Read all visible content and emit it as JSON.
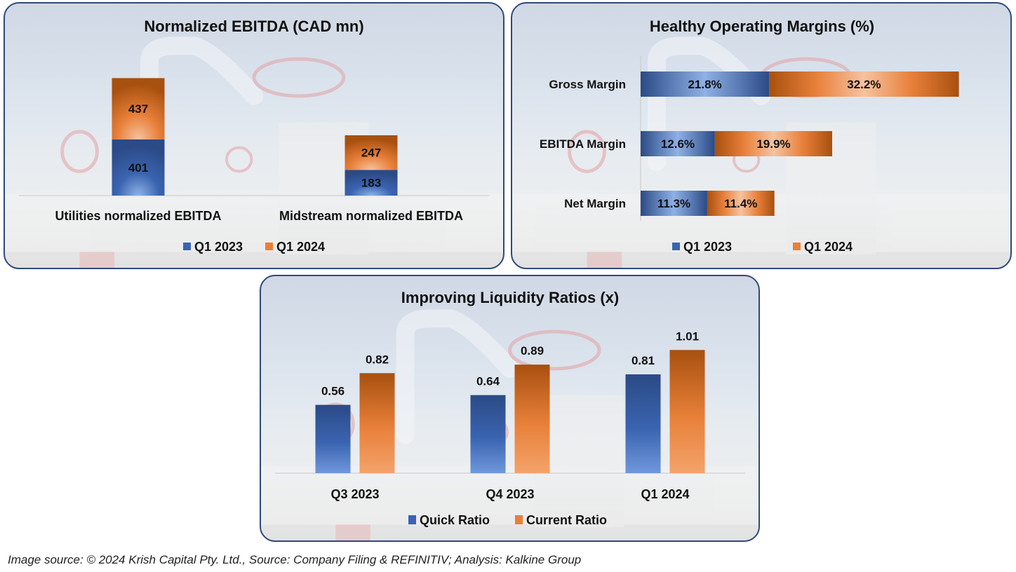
{
  "colors": {
    "blue": "#3a64b0",
    "blue_dark": "#2b4a86",
    "blue_light": "#8fb1e6",
    "orange": "#e8803a",
    "orange_dark": "#a8500f",
    "orange_light": "#f6c3a0",
    "panel_border": "#2f4a7a"
  },
  "chart_data": [
    {
      "type": "bar",
      "stacked": true,
      "orientation": "vertical",
      "title": "Normalized EBITDA (CAD mn)",
      "categories": [
        "Utilities normalized EBITDA",
        "Midstream normalized EBITDA"
      ],
      "series": [
        {
          "name": "Q1 2023",
          "values": [
            401,
            183
          ],
          "labels": [
            "401",
            "183"
          ]
        },
        {
          "name": "Q1 2024",
          "values": [
            437,
            247
          ],
          "labels": [
            "437",
            "247"
          ]
        }
      ],
      "xlabel": "",
      "ylabel": "",
      "legend": "bottom",
      "grid": false
    },
    {
      "type": "bar",
      "stacked": true,
      "orientation": "horizontal",
      "title": "Healthy Operating Margins (%)",
      "categories": [
        "Gross Margin",
        "EBITDA Margin",
        "Net Margin"
      ],
      "series": [
        {
          "name": "Q1 2023",
          "values": [
            21.8,
            12.6,
            11.3
          ],
          "labels": [
            "21.8%",
            "12.6%",
            "11.3%"
          ]
        },
        {
          "name": "Q1 2024",
          "values": [
            32.2,
            19.9,
            11.4
          ],
          "labels": [
            "32.2%",
            "19.9%",
            "11.4%"
          ]
        }
      ],
      "xlabel": "",
      "ylabel": "",
      "legend": "bottom",
      "grid": false
    },
    {
      "type": "bar",
      "stacked": false,
      "orientation": "vertical",
      "title": "Improving Liquidity Ratios (x)",
      "categories": [
        "Q3 2023",
        "Q4 2023",
        "Q1 2024"
      ],
      "series": [
        {
          "name": "Quick Ratio",
          "values": [
            0.56,
            0.64,
            0.81
          ],
          "labels": [
            "0.56",
            "0.64",
            "0.81"
          ]
        },
        {
          "name": "Current Ratio",
          "values": [
            0.82,
            0.89,
            1.01
          ],
          "labels": [
            "0.82",
            "0.89",
            "1.01"
          ]
        }
      ],
      "xlabel": "",
      "ylabel": "",
      "legend": "bottom",
      "grid": false
    }
  ],
  "footer": {
    "source_text": "Image source: © 2024 Krish Capital Pty. Ltd., Source: Company Filing & REFINITIV; Analysis: Kalkine Group"
  }
}
